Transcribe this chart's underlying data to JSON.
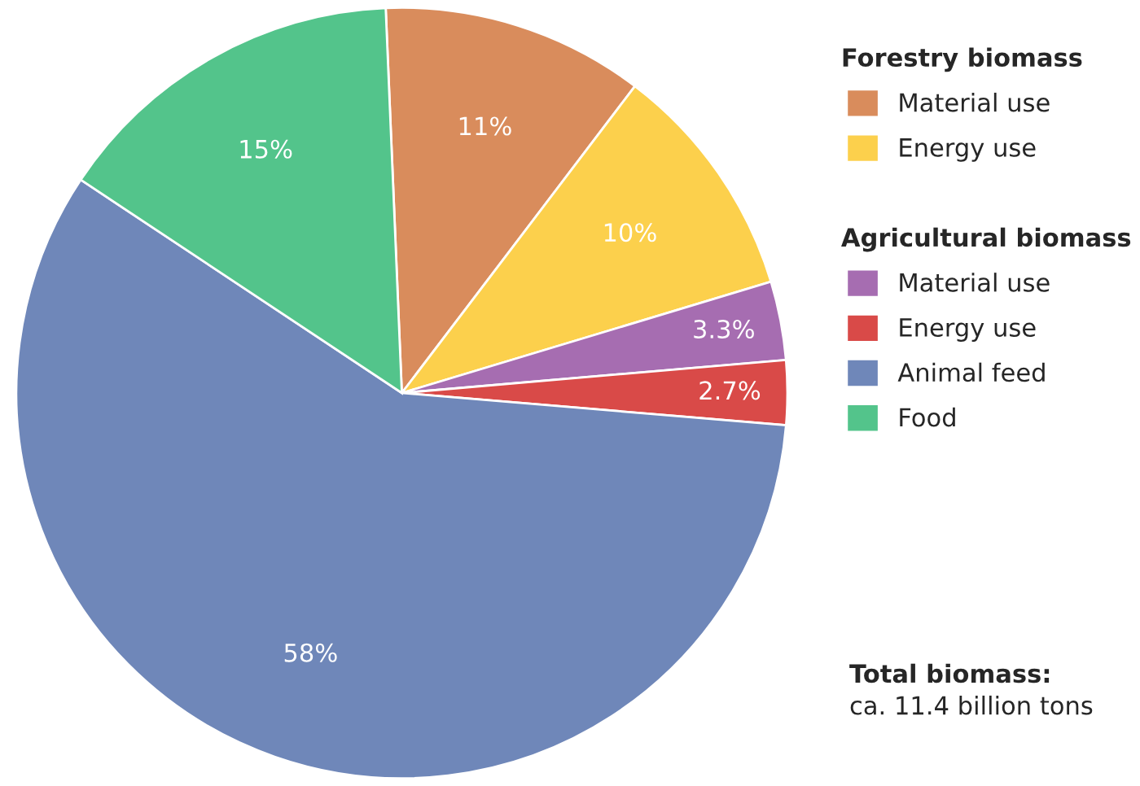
{
  "chart_data": {
    "type": "pie",
    "categories": [
      "Material use",
      "Energy use",
      "Material use",
      "Energy use",
      "Animal feed",
      "Food"
    ],
    "values": [
      11,
      10,
      3.3,
      2.7,
      58,
      15
    ],
    "colors": [
      "#d98c5c",
      "#fcd04c",
      "#a66db1",
      "#d94a48",
      "#6f87b9",
      "#53c48b"
    ],
    "value_labels": [
      "11%",
      "10%",
      "3.3%",
      "2.7%",
      "58%",
      "15%"
    ],
    "legend": "right",
    "annotations": [
      "Forestry biomass",
      "Agricultural biomass",
      "Total biomass:",
      "ca. 11.4 billion tons"
    ]
  }
}
